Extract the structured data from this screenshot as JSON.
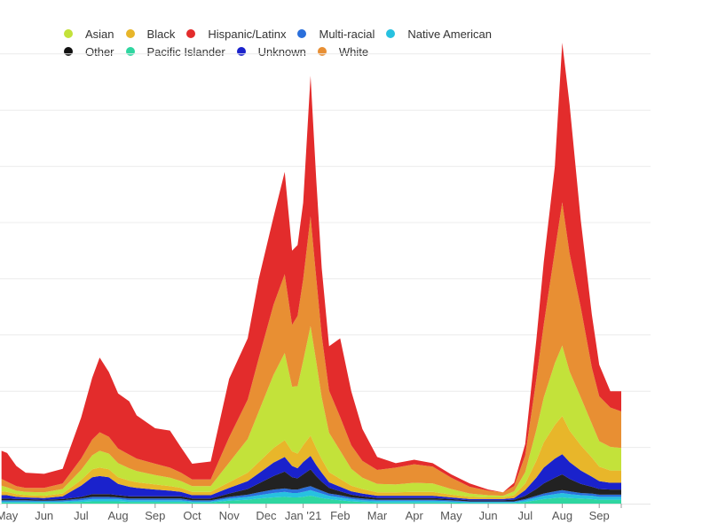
{
  "chart_data": {
    "type": "area",
    "stacked": true,
    "title": "",
    "xlabel": "",
    "ylabel": "",
    "grid": true,
    "ylim": [
      0,
      8
    ],
    "legend_position": "top-left",
    "x_ticks": [
      {
        "m": 0,
        "label": "May"
      },
      {
        "m": 1,
        "label": "Jun"
      },
      {
        "m": 2,
        "label": "Jul"
      },
      {
        "m": 3,
        "label": "Aug"
      },
      {
        "m": 4,
        "label": "Sep"
      },
      {
        "m": 5,
        "label": "Oct"
      },
      {
        "m": 6,
        "label": "Nov"
      },
      {
        "m": 7,
        "label": "Dec"
      },
      {
        "m": 8,
        "label": "Jan '21"
      },
      {
        "m": 9,
        "label": "Feb"
      },
      {
        "m": 10,
        "label": "Mar"
      },
      {
        "m": 11,
        "label": "Apr"
      },
      {
        "m": 12,
        "label": "May"
      },
      {
        "m": 13,
        "label": "Jun"
      },
      {
        "m": 14,
        "label": "Jul"
      },
      {
        "m": 15,
        "label": "Aug"
      },
      {
        "m": 16,
        "label": "Sep"
      }
    ],
    "x": [
      -0.15,
      0,
      0.25,
      0.5,
      1,
      1.5,
      2,
      2.3,
      2.5,
      2.75,
      3,
      3.3,
      3.5,
      4,
      4.4,
      4.7,
      5,
      5.5,
      6,
      6.5,
      6.8,
      7.2,
      7.5,
      7.7,
      7.85,
      8,
      8.2,
      8.35,
      8.5,
      8.7,
      9,
      9.3,
      9.6,
      10,
      10.5,
      11,
      11.5,
      12,
      12.5,
      13,
      13.4,
      13.7,
      14,
      14.3,
      14.5,
      14.8,
      15,
      15.2,
      15.5,
      15.8,
      16,
      16.3,
      16.6
    ],
    "series": [
      {
        "name": "Pacific Islander",
        "color": "#2fd6a0",
        "values": [
          0.02,
          0.02,
          0.02,
          0.02,
          0.02,
          0.02,
          0.03,
          0.04,
          0.04,
          0.04,
          0.04,
          0.03,
          0.03,
          0.03,
          0.03,
          0.03,
          0.02,
          0.02,
          0.05,
          0.07,
          0.09,
          0.11,
          0.12,
          0.11,
          0.11,
          0.12,
          0.14,
          0.12,
          0.1,
          0.08,
          0.06,
          0.04,
          0.03,
          0.02,
          0.02,
          0.02,
          0.02,
          0.02,
          0.01,
          0.01,
          0.01,
          0.01,
          0.03,
          0.06,
          0.08,
          0.1,
          0.11,
          0.1,
          0.09,
          0.08,
          0.07,
          0.07,
          0.07
        ]
      },
      {
        "name": "Native American",
        "color": "#27c1e0",
        "values": [
          0.02,
          0.02,
          0.02,
          0.02,
          0.02,
          0.02,
          0.03,
          0.04,
          0.04,
          0.04,
          0.04,
          0.03,
          0.03,
          0.03,
          0.03,
          0.03,
          0.02,
          0.02,
          0.04,
          0.05,
          0.06,
          0.08,
          0.09,
          0.08,
          0.08,
          0.09,
          0.1,
          0.09,
          0.08,
          0.06,
          0.05,
          0.04,
          0.03,
          0.03,
          0.03,
          0.03,
          0.03,
          0.02,
          0.02,
          0.02,
          0.02,
          0.02,
          0.03,
          0.05,
          0.06,
          0.07,
          0.08,
          0.07,
          0.06,
          0.06,
          0.05,
          0.05,
          0.05
        ]
      },
      {
        "name": "Multi-racial",
        "color": "#2a6fdb",
        "values": [
          0.02,
          0.02,
          0.02,
          0.02,
          0.01,
          0.02,
          0.03,
          0.04,
          0.04,
          0.04,
          0.03,
          0.03,
          0.03,
          0.03,
          0.03,
          0.03,
          0.02,
          0.02,
          0.03,
          0.04,
          0.05,
          0.06,
          0.06,
          0.06,
          0.06,
          0.07,
          0.07,
          0.06,
          0.05,
          0.04,
          0.04,
          0.03,
          0.03,
          0.02,
          0.02,
          0.02,
          0.02,
          0.02,
          0.01,
          0.01,
          0.01,
          0.01,
          0.02,
          0.03,
          0.04,
          0.05,
          0.05,
          0.05,
          0.04,
          0.04,
          0.04,
          0.04,
          0.04
        ]
      },
      {
        "name": "Other",
        "color": "#222222",
        "values": [
          0.03,
          0.03,
          0.02,
          0.02,
          0.02,
          0.02,
          0.03,
          0.05,
          0.05,
          0.05,
          0.04,
          0.04,
          0.04,
          0.04,
          0.04,
          0.04,
          0.03,
          0.03,
          0.06,
          0.1,
          0.16,
          0.24,
          0.3,
          0.22,
          0.2,
          0.24,
          0.3,
          0.22,
          0.16,
          0.1,
          0.07,
          0.05,
          0.04,
          0.03,
          0.03,
          0.03,
          0.03,
          0.02,
          0.02,
          0.02,
          0.02,
          0.03,
          0.06,
          0.12,
          0.18,
          0.24,
          0.28,
          0.22,
          0.16,
          0.12,
          0.1,
          0.09,
          0.09
        ]
      },
      {
        "name": "Unknown",
        "color": "#1a22cc",
        "values": [
          0.06,
          0.06,
          0.04,
          0.03,
          0.03,
          0.05,
          0.2,
          0.3,
          0.32,
          0.3,
          0.2,
          0.17,
          0.15,
          0.12,
          0.1,
          0.08,
          0.06,
          0.06,
          0.1,
          0.14,
          0.18,
          0.24,
          0.26,
          0.2,
          0.18,
          0.22,
          0.24,
          0.2,
          0.16,
          0.1,
          0.08,
          0.06,
          0.05,
          0.04,
          0.04,
          0.04,
          0.04,
          0.03,
          0.02,
          0.02,
          0.02,
          0.03,
          0.1,
          0.2,
          0.28,
          0.34,
          0.36,
          0.3,
          0.24,
          0.18,
          0.14,
          0.12,
          0.12
        ]
      },
      {
        "name": "Black",
        "color": "#e8b62a",
        "values": [
          0.07,
          0.06,
          0.05,
          0.04,
          0.04,
          0.05,
          0.1,
          0.14,
          0.15,
          0.14,
          0.12,
          0.11,
          0.1,
          0.09,
          0.08,
          0.07,
          0.06,
          0.06,
          0.1,
          0.15,
          0.2,
          0.26,
          0.3,
          0.26,
          0.26,
          0.3,
          0.36,
          0.3,
          0.24,
          0.18,
          0.14,
          0.1,
          0.08,
          0.06,
          0.06,
          0.07,
          0.07,
          0.05,
          0.04,
          0.03,
          0.03,
          0.05,
          0.12,
          0.3,
          0.45,
          0.6,
          0.68,
          0.56,
          0.45,
          0.34,
          0.26,
          0.22,
          0.22
        ]
      },
      {
        "name": "Asian",
        "color": "#c3e23a",
        "values": [
          0.1,
          0.08,
          0.06,
          0.06,
          0.06,
          0.08,
          0.18,
          0.25,
          0.3,
          0.28,
          0.25,
          0.22,
          0.2,
          0.17,
          0.15,
          0.12,
          0.1,
          0.1,
          0.35,
          0.6,
          0.9,
          1.3,
          1.55,
          1.15,
          1.2,
          1.5,
          1.95,
          1.55,
          1.1,
          0.7,
          0.5,
          0.3,
          0.2,
          0.15,
          0.14,
          0.16,
          0.15,
          0.1,
          0.06,
          0.04,
          0.03,
          0.07,
          0.2,
          0.55,
          0.8,
          1.1,
          1.25,
          1.05,
          0.85,
          0.6,
          0.45,
          0.42,
          0.4
        ]
      },
      {
        "name": "White",
        "color": "#e88f33",
        "values": [
          0.12,
          0.1,
          0.08,
          0.07,
          0.08,
          0.1,
          0.2,
          0.28,
          0.33,
          0.3,
          0.26,
          0.24,
          0.22,
          0.2,
          0.18,
          0.15,
          0.12,
          0.12,
          0.45,
          0.7,
          0.95,
          1.25,
          1.4,
          1.1,
          1.25,
          1.45,
          1.95,
          1.5,
          1.1,
          0.75,
          0.6,
          0.42,
          0.3,
          0.25,
          0.3,
          0.33,
          0.3,
          0.2,
          0.12,
          0.08,
          0.06,
          0.09,
          0.3,
          0.9,
          1.3,
          2.0,
          2.55,
          2.1,
          1.6,
          1.0,
          0.8,
          0.7,
          0.65
        ]
      },
      {
        "name": "Hispanic/Latinx",
        "color": "#e32c2c",
        "values": [
          0.5,
          0.51,
          0.36,
          0.27,
          0.25,
          0.26,
          0.73,
          1.1,
          1.33,
          1.15,
          0.98,
          0.95,
          0.77,
          0.63,
          0.66,
          0.45,
          0.28,
          0.32,
          1.04,
          1.09,
          1.41,
          1.56,
          1.82,
          1.32,
          1.26,
          1.36,
          2.5,
          1.76,
          1.2,
          0.79,
          1.4,
          0.96,
          0.57,
          0.23,
          0.08,
          0.08,
          0.06,
          0.06,
          0.06,
          0.02,
          0.0,
          0.06,
          0.2,
          0.7,
          1.11,
          1.5,
          2.84,
          2.65,
          1.55,
          0.94,
          0.56,
          0.29,
          0.36
        ]
      }
    ]
  },
  "legend": [
    [
      {
        "label": "Asian",
        "color": "#c3e23a"
      },
      {
        "label": "Black",
        "color": "#e8b62a"
      },
      {
        "label": "Hispanic/Latinx",
        "color": "#e32c2c"
      },
      {
        "label": "Multi-racial",
        "color": "#2a6fdb"
      },
      {
        "label": "Native American",
        "color": "#27c1e0"
      }
    ],
    [
      {
        "label": "Other",
        "color": "#111111"
      },
      {
        "label": "Pacific Islander",
        "color": "#2fd6a0"
      },
      {
        "label": "Unknown",
        "color": "#1a22cc"
      },
      {
        "label": "White",
        "color": "#e88f33"
      }
    ]
  ]
}
